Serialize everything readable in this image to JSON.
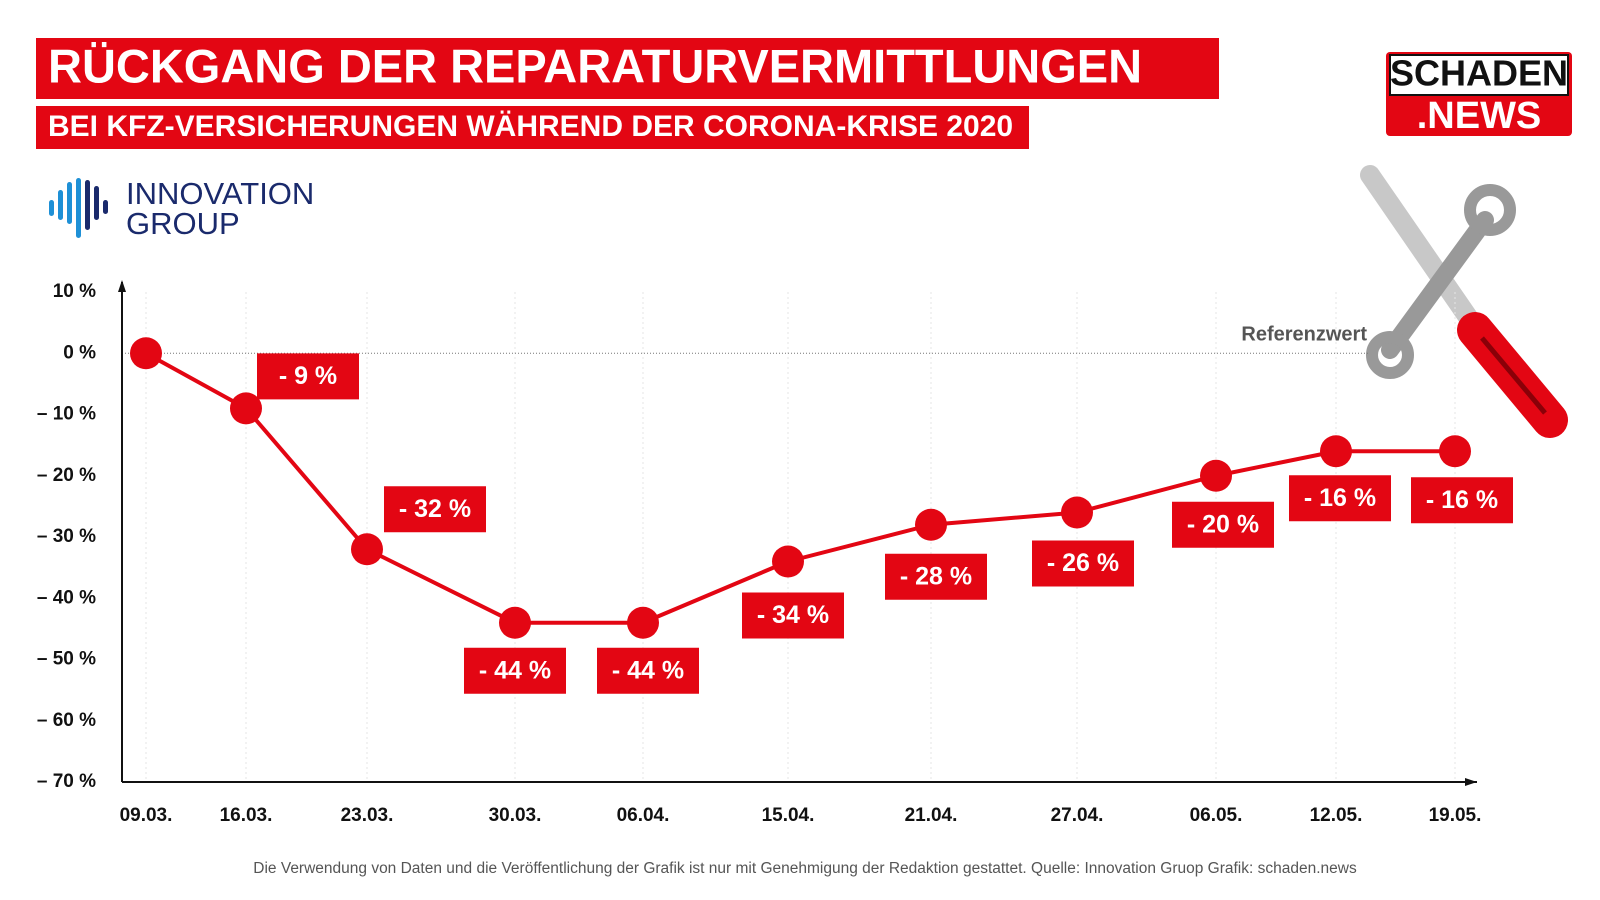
{
  "chart_data": {
    "type": "line",
    "title": "RÜCKGANG DER REPARATURVERMITTLUNGEN",
    "subtitle": "BEI KFZ-VERSICHERUNGEN WÄHREND DER CORONA-KRISE 2020",
    "logos": [
      "INNOVATION",
      "GROUP",
      "SCHADEN",
      ".NEWS"
    ],
    "reference_label": "Referenzwert",
    "source": "Die Verwendung von Daten und die Veröffentlichung der Grafik ist nur mit Genehmigung der Redaktion gestattet. Quelle: Innovation Gruop Grafik: schaden.news",
    "categories": [
      "09.03.",
      "16.03.",
      "23.03.",
      "30.03.",
      "06.04.",
      "15.04.",
      "21.04.",
      "27.04.",
      "06.05.",
      "12.05.",
      "19.05."
    ],
    "values": [
      0,
      -9,
      -32,
      -44,
      -44,
      -34,
      -28,
      -26,
      -20,
      -16,
      -16
    ],
    "value_labels": [
      null,
      "- 9 %",
      "- 32 %",
      "- 44 %",
      "- 44 %",
      "- 34 %",
      "- 28 %",
      "- 26 %",
      "- 20 %",
      "- 16 %",
      "- 16 %"
    ],
    "color": "#e30613",
    "ylim": [
      -70,
      10
    ],
    "yticks": [
      {
        "value": 10,
        "label": "10 %"
      },
      {
        "value": 0,
        "label": "0 %"
      },
      {
        "value": -10,
        "label": "– 10 %"
      },
      {
        "value": -20,
        "label": "– 20 %"
      },
      {
        "value": -30,
        "label": "– 30 %"
      },
      {
        "value": -40,
        "label": "– 40 %"
      },
      {
        "value": -50,
        "label": "– 50 %"
      },
      {
        "value": -60,
        "label": "– 60 %"
      },
      {
        "value": -70,
        "label": "– 70 %"
      }
    ],
    "reference_value": 0,
    "grid": true
  }
}
